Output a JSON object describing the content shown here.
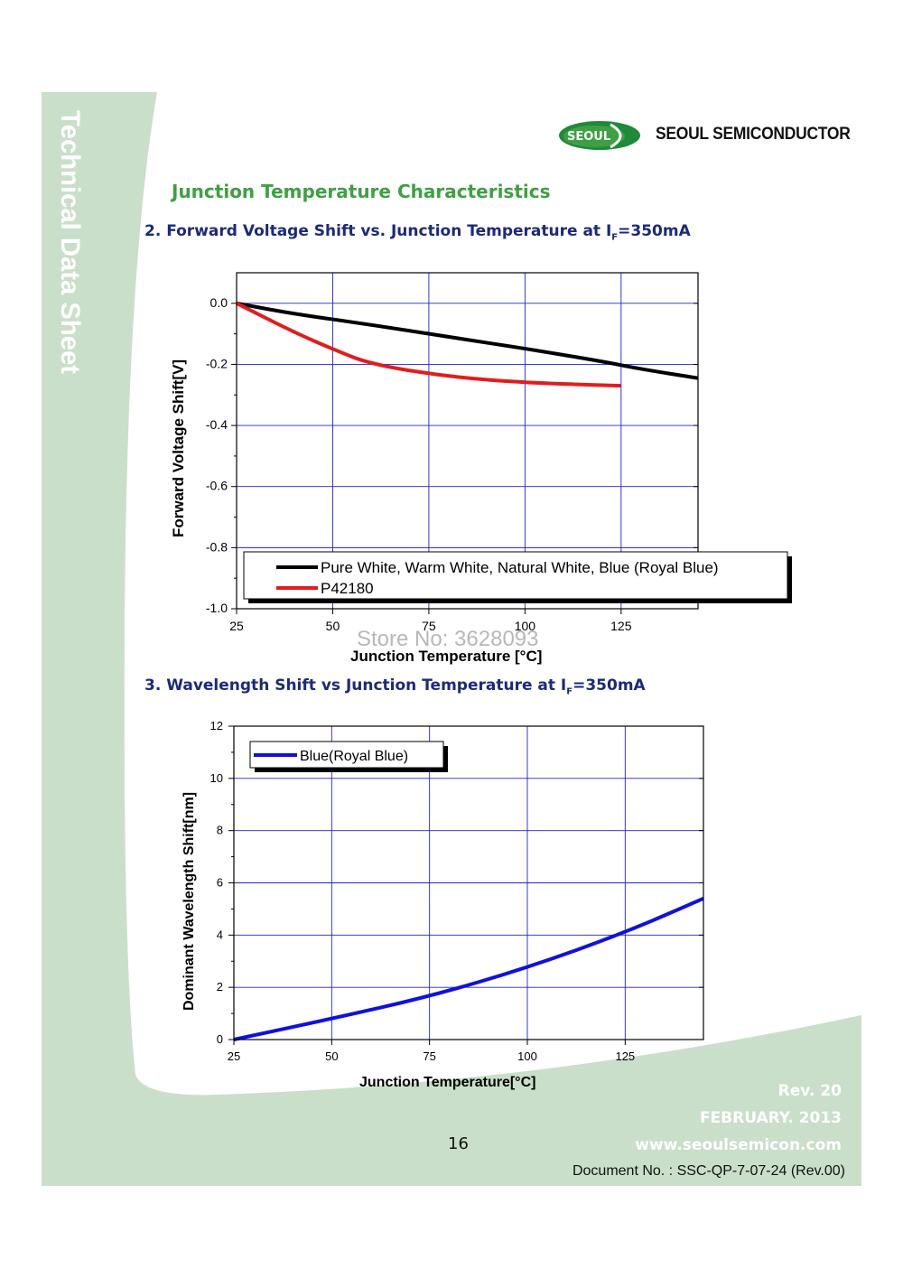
{
  "sidebar": {
    "vertical_title": "Technical Data Sheet"
  },
  "header": {
    "logo_badge": "SEOUL",
    "brand": "SEOUL SEMICONDUCTOR"
  },
  "section_title": "Junction Temperature Characteristics",
  "chart2_heading": {
    "prefix": "2. Forward Voltage Shift  vs. Junction Temperature at I",
    "sub": "F",
    "suffix": "=350mA"
  },
  "chart3_heading": {
    "prefix": "3. Wavelength Shift vs Junction Temperature at I",
    "sub": "F",
    "suffix": "=350mA"
  },
  "watermark": "Store No: 3628093",
  "footer": {
    "page_number": "16",
    "rev": "Rev. 20",
    "date": "FEBRUARY. 2013",
    "website": "www.seoulsemicon.com",
    "document_no": "Document No. : SSC-QP-7-07-24 (Rev.00)"
  },
  "colors": {
    "brand_green": "#3ea042",
    "heading_navy": "#1b2a7a",
    "grid_blue": "#2222cc",
    "series_black": "#000000",
    "series_red": "#e11d1d",
    "series_blue": "#1010e0",
    "sidebar_green": "#c9dfc9"
  },
  "chart_data": [
    {
      "type": "line",
      "title": "",
      "xlabel": "Junction Temperature [°C]",
      "ylabel": "Forward Voltage Shift[V]",
      "xlim": [
        25,
        145
      ],
      "ylim": [
        -1.0,
        0.1
      ],
      "xticks": [
        "25",
        "50",
        "75",
        "100",
        "125"
      ],
      "yticks": [
        "0.0",
        "-0.2",
        "-0.4",
        "-0.6",
        "-0.8",
        "-1.0"
      ],
      "legend": "bottom",
      "series": [
        {
          "name": "Pure White, Warm White, Natural White, Blue (Royal Blue)",
          "color": "#000000",
          "x": [
            25,
            40,
            60,
            80,
            100,
            120,
            130,
            145
          ],
          "y": [
            0.0,
            -0.035,
            -0.07,
            -0.11,
            -0.148,
            -0.19,
            -0.215,
            -0.245
          ]
        },
        {
          "name": "P42180",
          "color": "#e11d1d",
          "x": [
            25,
            40,
            50,
            60,
            80,
            100,
            125
          ],
          "y": [
            0.0,
            -0.095,
            -0.15,
            -0.2,
            -0.24,
            -0.26,
            -0.27
          ]
        }
      ]
    },
    {
      "type": "line",
      "title": "",
      "xlabel": "Junction Temperature[°C]",
      "ylabel": "Dominant Wavelength Shift[nm]",
      "xlim": [
        25,
        145
      ],
      "ylim": [
        0,
        12
      ],
      "xticks": [
        "25",
        "50",
        "75",
        "100",
        "125"
      ],
      "yticks": [
        "0",
        "2",
        "4",
        "6",
        "8",
        "10",
        "12"
      ],
      "legend": "top-left",
      "series": [
        {
          "name": "Blue(Royal Blue)",
          "color": "#1010e0",
          "x": [
            25,
            50,
            75,
            100,
            125,
            145
          ],
          "y": [
            0.0,
            0.8,
            1.65,
            2.75,
            4.1,
            5.4
          ]
        }
      ]
    }
  ]
}
